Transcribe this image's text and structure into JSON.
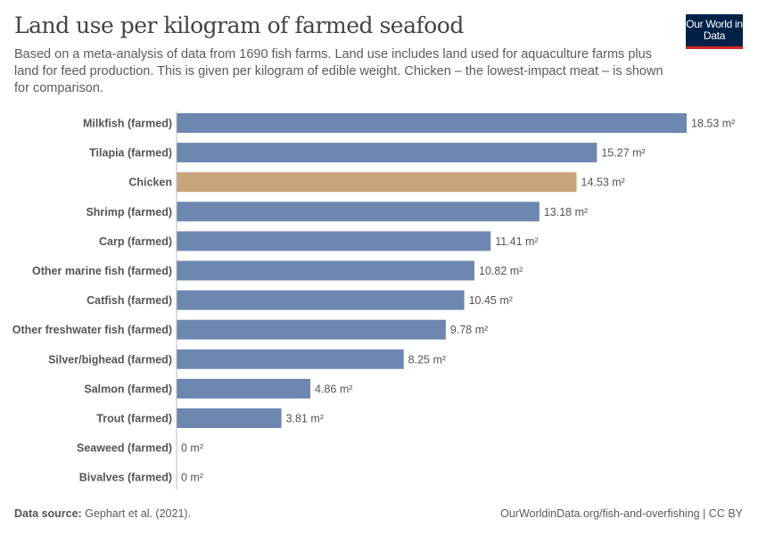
{
  "header": {
    "title": "Land use per kilogram of farmed seafood",
    "subtitle": "Based on a meta-analysis of data from 1690 fish farms. Land use includes land used for aquaculture farms plus land for feed production. This is given per kilogram of edible weight. Chicken – the lowest-impact meat – is shown for comparison.",
    "logo": "Our World in Data"
  },
  "footer": {
    "source_label": "Data source:",
    "source": "Gephart et al. (2021).",
    "url": "OurWorldinData.org/fish-and-overfishing | CC BY"
  },
  "chart_data": {
    "type": "bar",
    "orientation": "horizontal",
    "title": "Land use per kilogram of farmed seafood",
    "unit": "m²",
    "categories": [
      "Milkfish (farmed)",
      "Tilapia (farmed)",
      "Chicken",
      "Shrimp (farmed)",
      "Carp (farmed)",
      "Other marine fish (farmed)",
      "Catfish (farmed)",
      "Other freshwater fish (farmed)",
      "Silver/bighead (farmed)",
      "Salmon (farmed)",
      "Trout (farmed)",
      "Seaweed (farmed)",
      "Bivalves (farmed)"
    ],
    "values": [
      18.53,
      15.27,
      14.53,
      13.18,
      11.41,
      10.82,
      10.45,
      9.78,
      8.25,
      4.86,
      3.81,
      0,
      0
    ],
    "labels": [
      "18.53 m²",
      "15.27 m²",
      "14.53 m²",
      "13.18 m²",
      "11.41 m²",
      "10.82 m²",
      "10.45 m²",
      "9.78 m²",
      "8.25 m²",
      "4.86 m²",
      "3.81 m²",
      "0 m²",
      "0 m²"
    ],
    "xlim": [
      0,
      18.53
    ],
    "grid": false,
    "colors": {
      "default": "#6d87b0",
      "highlight": "#c9a47a",
      "highlight_category": "Chicken"
    }
  }
}
